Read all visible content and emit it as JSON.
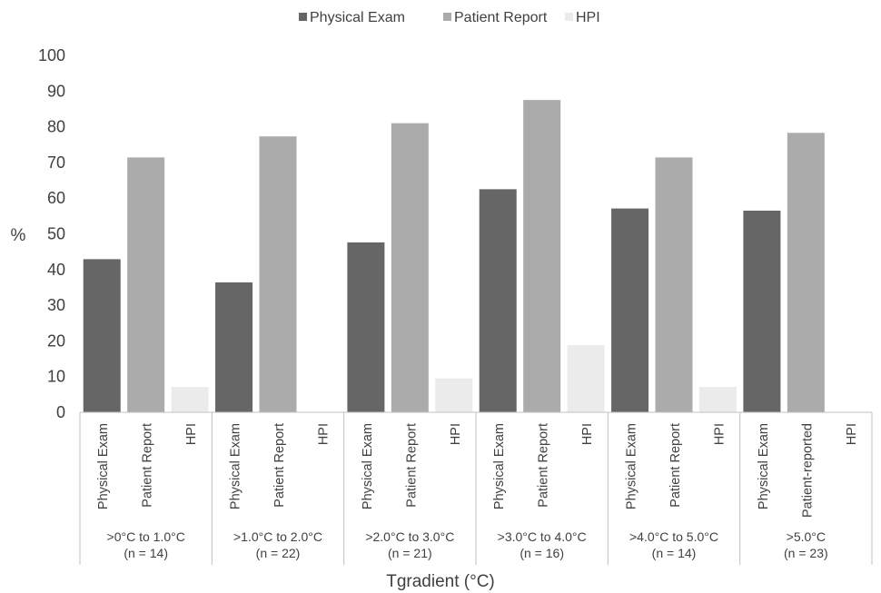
{
  "chart_data": {
    "type": "bar",
    "title": "",
    "xlabel": "Tgradient (°C)",
    "ylabel": "%",
    "ylim": [
      0,
      100
    ],
    "yticks": [
      0,
      10,
      20,
      30,
      40,
      50,
      60,
      70,
      80,
      90,
      100
    ],
    "grid": false,
    "legend_position": "top-center",
    "legend": [
      {
        "name": "Physical Exam",
        "color": "#666666"
      },
      {
        "name": "Patient Report",
        "color": "#ababab"
      },
      {
        "name": "HPI",
        "color": "#ebebeb"
      }
    ],
    "groups": [
      {
        "label": ">0°C to 1.0°C",
        "n": "(n = 14)",
        "bars": [
          {
            "label": "Physical Exam",
            "value": 42.9
          },
          {
            "label": "Patient Report",
            "value": 71.4
          },
          {
            "label": "HPI",
            "value": 7.1
          }
        ]
      },
      {
        "label": ">1.0°C to 2.0°C",
        "n": "(n = 22)",
        "bars": [
          {
            "label": "Physical Exam",
            "value": 36.4
          },
          {
            "label": "Patient Report",
            "value": 77.3
          },
          {
            "label": "HPI",
            "value": 0
          }
        ]
      },
      {
        "label": ">2.0°C to 3.0°C",
        "n": "(n = 21)",
        "bars": [
          {
            "label": "Physical Exam",
            "value": 47.6
          },
          {
            "label": "Patient Report",
            "value": 81.0
          },
          {
            "label": "HPI",
            "value": 9.5
          }
        ]
      },
      {
        "label": ">3.0°C to 4.0°C",
        "n": "(n = 16)",
        "bars": [
          {
            "label": "Physical Exam",
            "value": 62.5
          },
          {
            "label": "Patient Report",
            "value": 87.5
          },
          {
            "label": "HPI",
            "value": 18.8
          }
        ]
      },
      {
        "label": ">4.0°C to 5.0°C",
        "n": "(n = 14)",
        "bars": [
          {
            "label": "Physical Exam",
            "value": 57.1
          },
          {
            "label": "Patient Report",
            "value": 71.4
          },
          {
            "label": "HPI",
            "value": 7.1
          }
        ]
      },
      {
        "label": ">5.0°C",
        "n": "(n = 23)",
        "bars": [
          {
            "label": "Physical Exam",
            "value": 56.5
          },
          {
            "label": "Patient-reported",
            "value": 78.3
          },
          {
            "label": "HPI",
            "value": 0
          }
        ]
      }
    ]
  }
}
